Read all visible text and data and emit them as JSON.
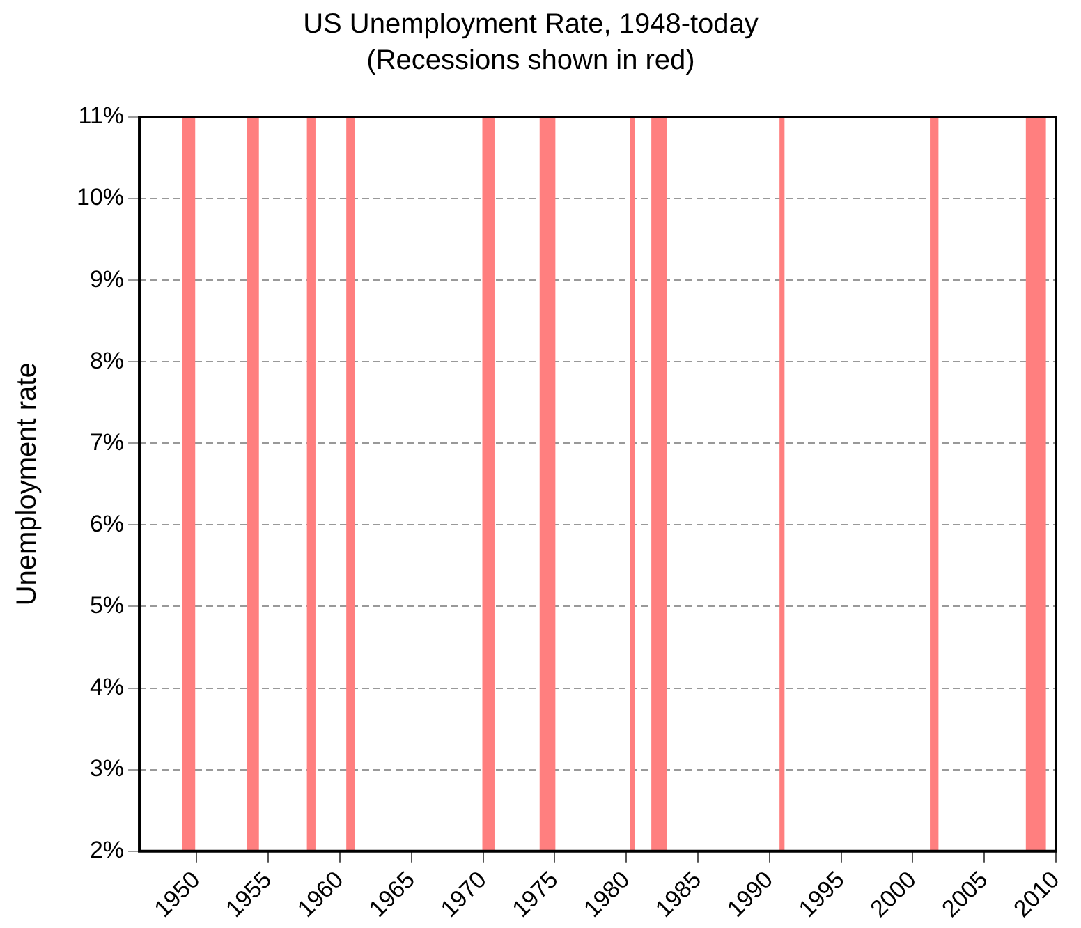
{
  "chart_data": {
    "type": "line",
    "title": "US Unemployment Rate, 1948-today",
    "subtitle": "(Recessions shown in red)",
    "ylabel": "Unemployment rate",
    "xlim": [
      1946,
      2010
    ],
    "xticks": [
      1950,
      1955,
      1960,
      1965,
      1970,
      1975,
      1980,
      1985,
      1990,
      1995,
      2000,
      2005,
      2010
    ],
    "ylim": [
      2,
      11
    ],
    "yticks": [
      {
        "value": 2,
        "label": "2%"
      },
      {
        "value": 3,
        "label": "3%"
      },
      {
        "value": 4,
        "label": "4%"
      },
      {
        "value": 5,
        "label": "5%"
      },
      {
        "value": 6,
        "label": "6%"
      },
      {
        "value": 7,
        "label": "7%"
      },
      {
        "value": 8,
        "label": "8%"
      },
      {
        "value": 9,
        "label": "9%"
      },
      {
        "value": 10,
        "label": "10%"
      },
      {
        "value": 11,
        "label": "11%"
      }
    ],
    "grid": "y",
    "legend": false,
    "bands": [
      {
        "axis": "x",
        "from": 1949.0,
        "to": 1949.9,
        "color": "#ff7f7f"
      },
      {
        "axis": "x",
        "from": 1953.5,
        "to": 1954.35,
        "color": "#ff7f7f"
      },
      {
        "axis": "x",
        "from": 1957.7,
        "to": 1958.3,
        "color": "#ff7f7f"
      },
      {
        "axis": "x",
        "from": 1960.45,
        "to": 1961.05,
        "color": "#ff7f7f"
      },
      {
        "axis": "x",
        "from": 1969.95,
        "to": 1970.8,
        "color": "#ff7f7f"
      },
      {
        "axis": "x",
        "from": 1973.95,
        "to": 1975.05,
        "color": "#ff7f7f"
      },
      {
        "axis": "x",
        "from": 1980.25,
        "to": 1980.6,
        "color": "#ff7f7f"
      },
      {
        "axis": "x",
        "from": 1981.75,
        "to": 1982.85,
        "color": "#ff7f7f"
      },
      {
        "axis": "x",
        "from": 1990.7,
        "to": 1991.05,
        "color": "#ff7f7f"
      },
      {
        "axis": "x",
        "from": 2001.2,
        "to": 2001.8,
        "color": "#ff7f7f"
      },
      {
        "axis": "x",
        "from": 2007.9,
        "to": 2009.3,
        "color": "#ff7f7f"
      }
    ]
  }
}
